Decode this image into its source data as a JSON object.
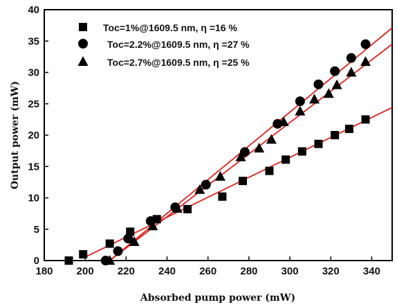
{
  "chart_data": {
    "type": "scatter",
    "title": "",
    "xlabel": "Absorbed pump power (mW)",
    "ylabel": "Output power (mW)",
    "xlim": [
      180,
      350
    ],
    "ylim": [
      0,
      40
    ],
    "xticks": [
      180,
      200,
      220,
      240,
      260,
      280,
      300,
      320,
      340
    ],
    "yticks": [
      0,
      5,
      10,
      15,
      20,
      25,
      30,
      35,
      40
    ],
    "grid": false,
    "legend_position": "top-left",
    "series": [
      {
        "name": "Toc=1%@1609.5 nm, η =16 %",
        "marker": "square",
        "color": "#000000",
        "points": [
          [
            192,
            0
          ],
          [
            199,
            1.0
          ],
          [
            212,
            2.7
          ],
          [
            222,
            4.6
          ],
          [
            235,
            6.6
          ],
          [
            250,
            8.2
          ],
          [
            267,
            10.2
          ],
          [
            277,
            12.7
          ],
          [
            290,
            14.3
          ],
          [
            298,
            16.1
          ],
          [
            306,
            17.4
          ],
          [
            314,
            18.6
          ],
          [
            322,
            20.0
          ],
          [
            329,
            21.0
          ],
          [
            337,
            22.5
          ]
        ]
      },
      {
        "name": "Toc=2.2%@1609.5 nm, η =27 %",
        "marker": "circle",
        "color": "#000000",
        "points": [
          [
            210,
            0
          ],
          [
            216,
            1.5
          ],
          [
            221,
            3.5
          ],
          [
            232,
            6.3
          ],
          [
            244,
            8.5
          ],
          [
            259,
            12.1
          ],
          [
            278,
            17.3
          ],
          [
            294,
            21.8
          ],
          [
            305,
            25.4
          ],
          [
            314,
            28.1
          ],
          [
            322,
            30.2
          ],
          [
            330,
            32.3
          ],
          [
            337,
            34.5
          ]
        ]
      },
      {
        "name": "Toc=2.7%@1609.5 nm, η =25 %",
        "marker": "triangle",
        "color": "#000000",
        "points": [
          [
            212,
            0
          ],
          [
            224,
            3.0
          ],
          [
            233,
            5.5
          ],
          [
            245,
            8.3
          ],
          [
            256,
            11.3
          ],
          [
            266,
            13.4
          ],
          [
            276,
            16.5
          ],
          [
            285,
            17.9
          ],
          [
            291,
            19.3
          ],
          [
            297,
            22.1
          ],
          [
            305,
            23.8
          ],
          [
            312,
            25.7
          ],
          [
            319,
            26.6
          ],
          [
            323,
            28.0
          ],
          [
            330,
            30.0
          ],
          [
            337,
            31.7
          ]
        ]
      }
    ],
    "fit_lines": [
      {
        "series": "Toc=1%@1609.5 nm, η =16 %",
        "color": "#e0201b",
        "x": [
          199,
          350
        ],
        "y": [
          0.4,
          24.4
        ]
      },
      {
        "series": "Toc=2.2%@1609.5 nm, η =27 %",
        "color": "#e0201b",
        "x": [
          212,
          350
        ],
        "y": [
          0,
          37.1
        ]
      },
      {
        "series": "Toc=2.7%@1609.5 nm, η =25 %",
        "color": "#e0201b",
        "x": [
          212,
          350
        ],
        "y": [
          0,
          34.5
        ]
      }
    ]
  }
}
